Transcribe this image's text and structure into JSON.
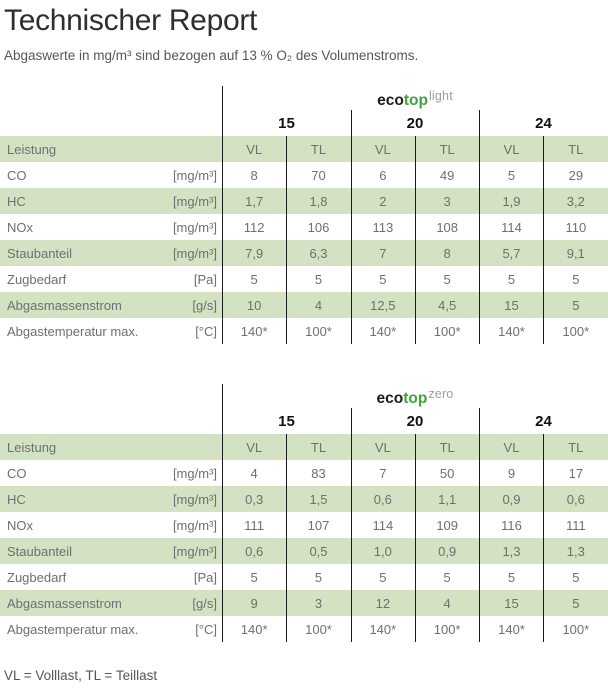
{
  "page": {
    "title": "Technischer Report",
    "subtitle": "Abgaswerte in mg/m³ sind bezogen auf 13 % O₂ des Volumenstroms.",
    "legend": "VL = Volllast, TL = Teillast"
  },
  "colors": {
    "accent_green": "#3fa43d",
    "row_shading_green": "#d3e2c3",
    "table_text_gray": "#6e6f71",
    "divider_black": "#1a1a1a"
  },
  "tables": [
    {
      "name": "ecotop light",
      "logo": {
        "brand": "eco",
        "brand2": "top",
        "variant": "light"
      },
      "models": [
        "15",
        "20",
        "24"
      ],
      "header": {
        "label": "Leistung",
        "cols": [
          "VL",
          "TL",
          "VL",
          "TL",
          "VL",
          "TL"
        ]
      },
      "rows": [
        {
          "label": "CO",
          "unit": "[mg/m³]",
          "values": [
            "8",
            "70",
            "6",
            "49",
            "5",
            "29"
          ]
        },
        {
          "label": "HC",
          "unit": "[mg/m³]",
          "values": [
            "1,7",
            "1,8",
            "2",
            "3",
            "1,9",
            "3,2"
          ]
        },
        {
          "label": "NOx",
          "unit": "[mg/m³]",
          "values": [
            "112",
            "106",
            "113",
            "108",
            "114",
            "110"
          ]
        },
        {
          "label": "Staubanteil",
          "unit": "[mg/m³]",
          "values": [
            "7,9",
            "6,3",
            "7",
            "8",
            "5,7",
            "9,1"
          ]
        },
        {
          "label": "Zugbedarf",
          "unit": "[Pa]",
          "values": [
            "5",
            "5",
            "5",
            "5",
            "5",
            "5"
          ]
        },
        {
          "label": "Abgasmassenstrom",
          "unit": "[g/s]",
          "values": [
            "10",
            "4",
            "12,5",
            "4,5",
            "15",
            "5"
          ]
        },
        {
          "label": "Abgastemperatur max.",
          "unit": "[°C]",
          "values": [
            "140*",
            "100*",
            "140*",
            "100*",
            "140*",
            "100*"
          ]
        }
      ]
    },
    {
      "name": "ecotop zero",
      "logo": {
        "brand": "eco",
        "brand2": "top",
        "variant": "zero"
      },
      "models": [
        "15",
        "20",
        "24"
      ],
      "header": {
        "label": "Leistung",
        "cols": [
          "VL",
          "TL",
          "VL",
          "TL",
          "VL",
          "TL"
        ]
      },
      "rows": [
        {
          "label": "CO",
          "unit": "[mg/m³]",
          "values": [
            "4",
            "83",
            "7",
            "50",
            "9",
            "17"
          ]
        },
        {
          "label": "HC",
          "unit": "[mg/m³]",
          "values": [
            "0,3",
            "1,5",
            "0,6",
            "1,1",
            "0,9",
            "0,6"
          ]
        },
        {
          "label": "NOx",
          "unit": "[mg/m³]",
          "values": [
            "111",
            "107",
            "114",
            "109",
            "116",
            "111"
          ]
        },
        {
          "label": "Staubanteil",
          "unit": "[mg/m³]",
          "values": [
            "0,6",
            "0,5",
            "1,0",
            "0,9",
            "1,3",
            "1,3"
          ]
        },
        {
          "label": "Zugbedarf",
          "unit": "[Pa]",
          "values": [
            "5",
            "5",
            "5",
            "5",
            "5",
            "5"
          ]
        },
        {
          "label": "Abgasmassenstrom",
          "unit": "[g/s]",
          "values": [
            "9",
            "3",
            "12",
            "4",
            "15",
            "5"
          ]
        },
        {
          "label": "Abgastemperatur max.",
          "unit": "[°C]",
          "values": [
            "140*",
            "100*",
            "140*",
            "100*",
            "140*",
            "100*"
          ]
        }
      ]
    }
  ]
}
